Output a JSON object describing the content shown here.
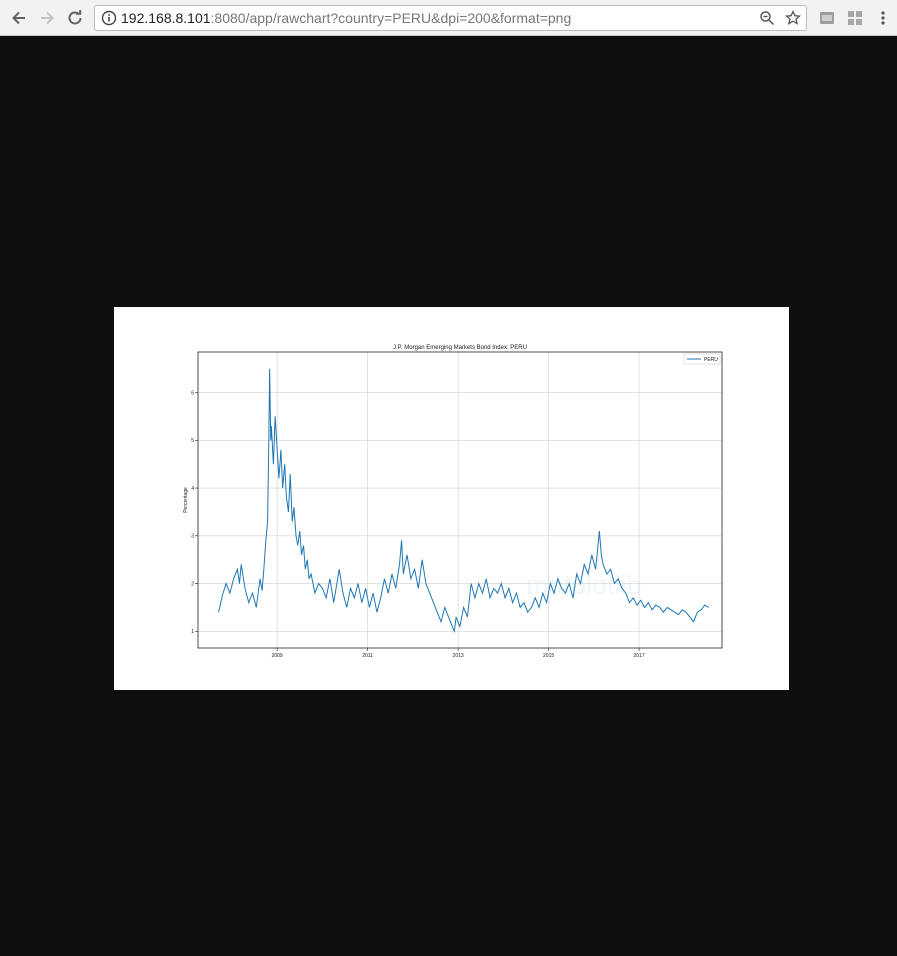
{
  "browser": {
    "url_host": "192.168.8.101",
    "url_rest": ":8080/app/rawchart?country=PERU&dpi=200&format=png",
    "icons": [
      "back-arrow-icon",
      "forward-arrow-icon",
      "reload-icon",
      "info-icon",
      "zoom-icon",
      "star-icon",
      "extension-icon",
      "extension-icon",
      "menu-icon"
    ]
  },
  "chart_data": {
    "type": "line",
    "title": "J.P. Morgan Emerging Markets Bond Index: PERU",
    "xlabel": "",
    "ylabel": "Percentage",
    "x_tick_labels": [
      "2009",
      "2011",
      "2013",
      "2015",
      "2017"
    ],
    "y_tick_labels": [
      "1",
      "2",
      "3",
      "4",
      "5",
      "6"
    ],
    "ylim": [
      0.65,
      6.85
    ],
    "xlim": [
      "2007-04",
      "2018-11"
    ],
    "grid": true,
    "legend": "top-right",
    "watermark": "matplotlib",
    "series": [
      {
        "name": "PERU",
        "color": "#1f77b4",
        "x": [
          "2007-09-15",
          "2007-10-15",
          "2007-11-15",
          "2007-12-15",
          "2008-01-15",
          "2008-02-15",
          "2008-03-01",
          "2008-03-15",
          "2008-04-15",
          "2008-05-15",
          "2008-06-15",
          "2008-07-15",
          "2008-08-15",
          "2008-09-01",
          "2008-09-15",
          "2008-10-01",
          "2008-10-15",
          "2008-10-25",
          "2008-11-01",
          "2008-11-10",
          "2008-11-15",
          "2008-12-01",
          "2008-12-15",
          "2009-01-01",
          "2009-01-15",
          "2009-02-01",
          "2009-02-15",
          "2009-03-01",
          "2009-03-15",
          "2009-04-01",
          "2009-04-15",
          "2009-05-01",
          "2009-05-15",
          "2009-06-01",
          "2009-06-15",
          "2009-07-01",
          "2009-07-15",
          "2009-08-01",
          "2009-08-15",
          "2009-09-01",
          "2009-09-15",
          "2009-10-01",
          "2009-11-01",
          "2009-12-01",
          "2010-01-01",
          "2010-02-01",
          "2010-03-01",
          "2010-04-01",
          "2010-05-15",
          "2010-06-15",
          "2010-07-15",
          "2010-08-15",
          "2010-09-15",
          "2010-10-15",
          "2010-11-15",
          "2010-12-15",
          "2011-01-15",
          "2011-02-15",
          "2011-03-15",
          "2011-04-15",
          "2011-05-15",
          "2011-06-15",
          "2011-07-15",
          "2011-08-15",
          "2011-09-15",
          "2011-10-01",
          "2011-10-15",
          "2011-11-15",
          "2011-12-15",
          "2012-01-15",
          "2012-02-15",
          "2012-03-15",
          "2012-04-15",
          "2012-05-15",
          "2012-06-15",
          "2012-07-15",
          "2012-08-15",
          "2012-09-15",
          "2012-10-15",
          "2012-11-15",
          "2012-12-01",
          "2012-12-15",
          "2013-01-15",
          "2013-02-15",
          "2013-03-15",
          "2013-04-15",
          "2013-05-15",
          "2013-06-15",
          "2013-07-15",
          "2013-08-15",
          "2013-09-15",
          "2013-10-15",
          "2013-11-15",
          "2013-12-15",
          "2014-01-15",
          "2014-02-15",
          "2014-03-15",
          "2014-04-15",
          "2014-05-15",
          "2014-06-15",
          "2014-07-15",
          "2014-08-15",
          "2014-09-15",
          "2014-10-15",
          "2014-11-15",
          "2014-12-15",
          "2015-01-15",
          "2015-02-15",
          "2015-03-15",
          "2015-04-15",
          "2015-05-15",
          "2015-06-15",
          "2015-07-15",
          "2015-08-15",
          "2015-09-15",
          "2015-10-15",
          "2015-11-15",
          "2015-12-15",
          "2016-01-15",
          "2016-02-01",
          "2016-02-15",
          "2016-03-01",
          "2016-03-15",
          "2016-04-15",
          "2016-05-15",
          "2016-06-15",
          "2016-07-15",
          "2016-08-15",
          "2016-09-15",
          "2016-10-15",
          "2016-11-15",
          "2016-12-15",
          "2017-01-15",
          "2017-02-15",
          "2017-03-15",
          "2017-04-15",
          "2017-05-15",
          "2017-06-15",
          "2017-07-15",
          "2017-08-15",
          "2017-09-15",
          "2017-10-15",
          "2017-11-15",
          "2017-12-15",
          "2018-01-15",
          "2018-02-15",
          "2018-03-15",
          "2018-04-15",
          "2018-05-15",
          "2018-06-15",
          "2018-07-15"
        ],
        "y": [
          1.4,
          1.75,
          2.0,
          1.8,
          2.1,
          2.3,
          2.0,
          2.4,
          1.9,
          1.6,
          1.8,
          1.5,
          2.1,
          1.85,
          2.3,
          2.9,
          3.3,
          5.0,
          6.5,
          5.0,
          5.3,
          4.5,
          5.5,
          4.8,
          4.2,
          4.8,
          4.0,
          4.5,
          3.8,
          3.5,
          4.3,
          3.3,
          3.6,
          3.0,
          2.8,
          3.1,
          2.6,
          2.8,
          2.3,
          2.5,
          2.1,
          2.2,
          1.8,
          2.0,
          1.9,
          1.7,
          2.1,
          1.6,
          2.3,
          1.8,
          1.5,
          1.9,
          1.7,
          2.0,
          1.6,
          1.9,
          1.5,
          1.8,
          1.4,
          1.7,
          2.1,
          1.8,
          2.2,
          1.9,
          2.4,
          2.9,
          2.2,
          2.6,
          2.1,
          2.3,
          1.9,
          2.5,
          2.0,
          1.8,
          1.6,
          1.4,
          1.2,
          1.5,
          1.3,
          1.1,
          1.0,
          1.3,
          1.1,
          1.5,
          1.3,
          2.0,
          1.7,
          2.0,
          1.8,
          2.1,
          1.7,
          1.9,
          1.8,
          2.0,
          1.7,
          1.9,
          1.6,
          1.8,
          1.5,
          1.6,
          1.4,
          1.5,
          1.7,
          1.5,
          1.8,
          1.6,
          2.0,
          1.8,
          2.1,
          1.9,
          1.8,
          2.0,
          1.7,
          2.2,
          2.0,
          2.4,
          2.2,
          2.6,
          2.3,
          2.7,
          3.1,
          2.6,
          2.4,
          2.2,
          2.3,
          2.0,
          2.1,
          1.9,
          1.8,
          1.6,
          1.7,
          1.55,
          1.65,
          1.5,
          1.6,
          1.45,
          1.55,
          1.5,
          1.4,
          1.5,
          1.45,
          1.4,
          1.35,
          1.45,
          1.4,
          1.3,
          1.2,
          1.4,
          1.45,
          1.55,
          1.5
        ]
      }
    ]
  }
}
